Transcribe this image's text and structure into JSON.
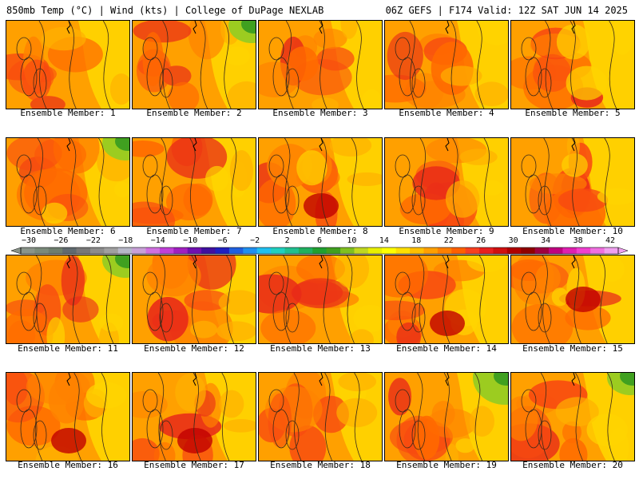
{
  "header": {
    "left": "850mb Temp (°C) | Wind (kts) | College of DuPage NEXLAB",
    "right": "06Z GEFS | F174 Valid: 12Z SAT JUN 14 2025"
  },
  "panel_label_prefix": "Ensemble Member:",
  "panels": [
    {
      "label": "Ensemble Member: 1",
      "member": 1
    },
    {
      "label": "Ensemble Member: 2",
      "member": 2
    },
    {
      "label": "Ensemble Member: 3",
      "member": 3
    },
    {
      "label": "Ensemble Member: 4",
      "member": 4
    },
    {
      "label": "Ensemble Member: 5",
      "member": 5
    },
    {
      "label": "Ensemble Member: 6",
      "member": 6
    },
    {
      "label": "Ensemble Member: 7",
      "member": 7
    },
    {
      "label": "Ensemble Member: 8",
      "member": 8
    },
    {
      "label": "Ensemble Member: 9",
      "member": 9
    },
    {
      "label": "Ensemble Member: 10",
      "member": 10
    },
    {
      "label": "Ensemble Member: 11",
      "member": 11
    },
    {
      "label": "Ensemble Member: 12",
      "member": 12
    },
    {
      "label": "Ensemble Member: 13",
      "member": 13
    },
    {
      "label": "Ensemble Member: 14",
      "member": 14
    },
    {
      "label": "Ensemble Member: 15",
      "member": 15
    },
    {
      "label": "Ensemble Member: 16",
      "member": 16
    },
    {
      "label": "Ensemble Member: 17",
      "member": 17
    },
    {
      "label": "Ensemble Member: 18",
      "member": 18
    },
    {
      "label": "Ensemble Member: 19",
      "member": 19
    },
    {
      "label": "Ensemble Member: 20",
      "member": 20
    }
  ],
  "colorbar": {
    "labels": [
      "−30",
      "−26",
      "−22",
      "−18",
      "−14",
      "−10",
      "−6",
      "−2",
      "2",
      "6",
      "10",
      "14",
      "18",
      "22",
      "26",
      "30",
      "34",
      "38",
      "42"
    ],
    "colors": [
      "#8a948a",
      "#7a8a7a",
      "#6e7e6e",
      "#606a70",
      "#787878",
      "#8c8c8c",
      "#a0a0a0",
      "#b8b8c8",
      "#c8a0d8",
      "#d070e0",
      "#c040d8",
      "#a020c0",
      "#7010b0",
      "#4010a0",
      "#2020c0",
      "#2060e0",
      "#2090f0",
      "#20c0f0",
      "#20d0c0",
      "#20c090",
      "#20b060",
      "#20a030",
      "#40a020",
      "#80c020",
      "#c0d820",
      "#e8f000",
      "#ffff00",
      "#ffe000",
      "#ffc000",
      "#ffa000",
      "#ff8000",
      "#ff6000",
      "#f84020",
      "#e82020",
      "#d01010",
      "#b00000",
      "#900000",
      "#a00040",
      "#c00080",
      "#e020b0",
      "#f040d0",
      "#f070e0",
      "#f0a0f0"
    ]
  }
}
